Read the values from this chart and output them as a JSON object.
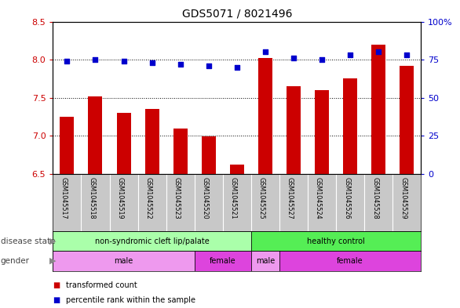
{
  "title": "GDS5071 / 8021496",
  "samples": [
    "GSM1045517",
    "GSM1045518",
    "GSM1045519",
    "GSM1045522",
    "GSM1045523",
    "GSM1045520",
    "GSM1045521",
    "GSM1045525",
    "GSM1045527",
    "GSM1045524",
    "GSM1045526",
    "GSM1045528",
    "GSM1045529"
  ],
  "bar_values": [
    7.25,
    7.52,
    7.3,
    7.35,
    7.1,
    6.99,
    6.62,
    8.02,
    7.65,
    7.6,
    7.75,
    8.2,
    7.92
  ],
  "scatter_values": [
    74,
    75,
    74,
    73,
    72,
    71,
    70,
    80,
    76,
    75,
    78,
    80,
    78
  ],
  "ylim_left": [
    6.5,
    8.5
  ],
  "ylim_right": [
    0,
    100
  ],
  "yticks_left": [
    6.5,
    7.0,
    7.5,
    8.0,
    8.5
  ],
  "yticks_right": [
    0,
    25,
    50,
    75,
    100
  ],
  "bar_color": "#cc0000",
  "scatter_color": "#0000cc",
  "disease_state_groups": [
    {
      "label": "non-syndromic cleft lip/palate",
      "start": 0,
      "end": 7,
      "color": "#aaffaa"
    },
    {
      "label": "healthy control",
      "start": 7,
      "end": 13,
      "color": "#55ee55"
    }
  ],
  "gender_groups": [
    {
      "label": "male",
      "start": 0,
      "end": 5,
      "color": "#ee99ee"
    },
    {
      "label": "female",
      "start": 5,
      "end": 7,
      "color": "#dd44dd"
    },
    {
      "label": "male",
      "start": 7,
      "end": 8,
      "color": "#ee99ee"
    },
    {
      "label": "female",
      "start": 8,
      "end": 13,
      "color": "#dd44dd"
    }
  ],
  "legend_items": [
    {
      "label": "transformed count",
      "color": "#cc0000"
    },
    {
      "label": "percentile rank within the sample",
      "color": "#0000cc"
    }
  ],
  "axis_color_left": "#cc0000",
  "axis_color_right": "#0000cc",
  "background_color": "#ffffff",
  "label_bg_color": "#c8c8c8",
  "title_fontsize": 10,
  "bar_width": 0.5
}
